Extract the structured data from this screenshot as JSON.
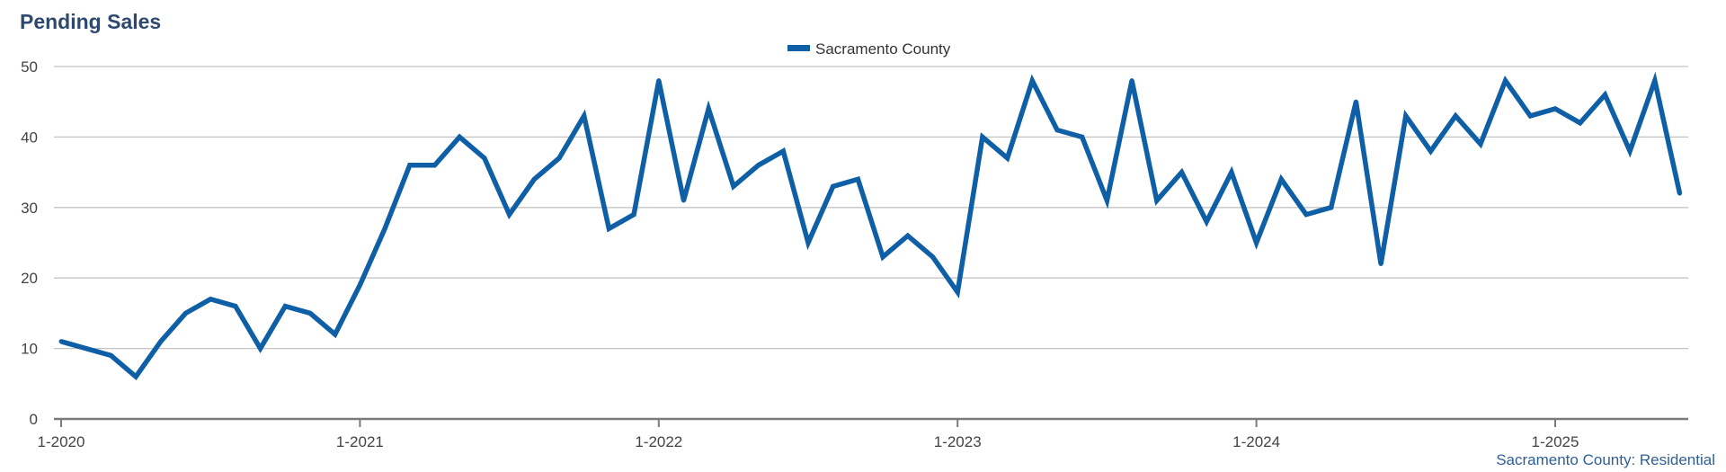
{
  "chart_data": {
    "type": "line",
    "title": "Pending Sales",
    "xlabel": "",
    "ylabel": "",
    "ylim": [
      0,
      50
    ],
    "yticks": [
      0,
      10,
      20,
      30,
      40,
      50
    ],
    "xticks": [
      "1-2020",
      "1-2021",
      "1-2022",
      "1-2023",
      "1-2024",
      "1-2025"
    ],
    "x_start": "2020-01",
    "legend_position": "top-center",
    "grid": true,
    "series": [
      {
        "name": "Sacramento County",
        "color": "#0f5fa6",
        "values": [
          11,
          10,
          9,
          6,
          11,
          15,
          17,
          16,
          10,
          16,
          15,
          12,
          19,
          27,
          36,
          36,
          40,
          37,
          29,
          34,
          37,
          43,
          27,
          29,
          48,
          31,
          44,
          33,
          36,
          38,
          25,
          33,
          34,
          23,
          26,
          23,
          18,
          40,
          37,
          48,
          41,
          40,
          31,
          48,
          31,
          35,
          28,
          35,
          25,
          34,
          29,
          30,
          45,
          22,
          43,
          38,
          43,
          39,
          48,
          43,
          44,
          42,
          46,
          38,
          48,
          32
        ]
      }
    ],
    "footer": "Sacramento County: Residential"
  },
  "colors": {
    "title": "#2d4a6e",
    "series": "#0f5fa6",
    "grid": "#c4c4c4",
    "axis": "#7a7a7a",
    "footer": "#2f5f95"
  }
}
